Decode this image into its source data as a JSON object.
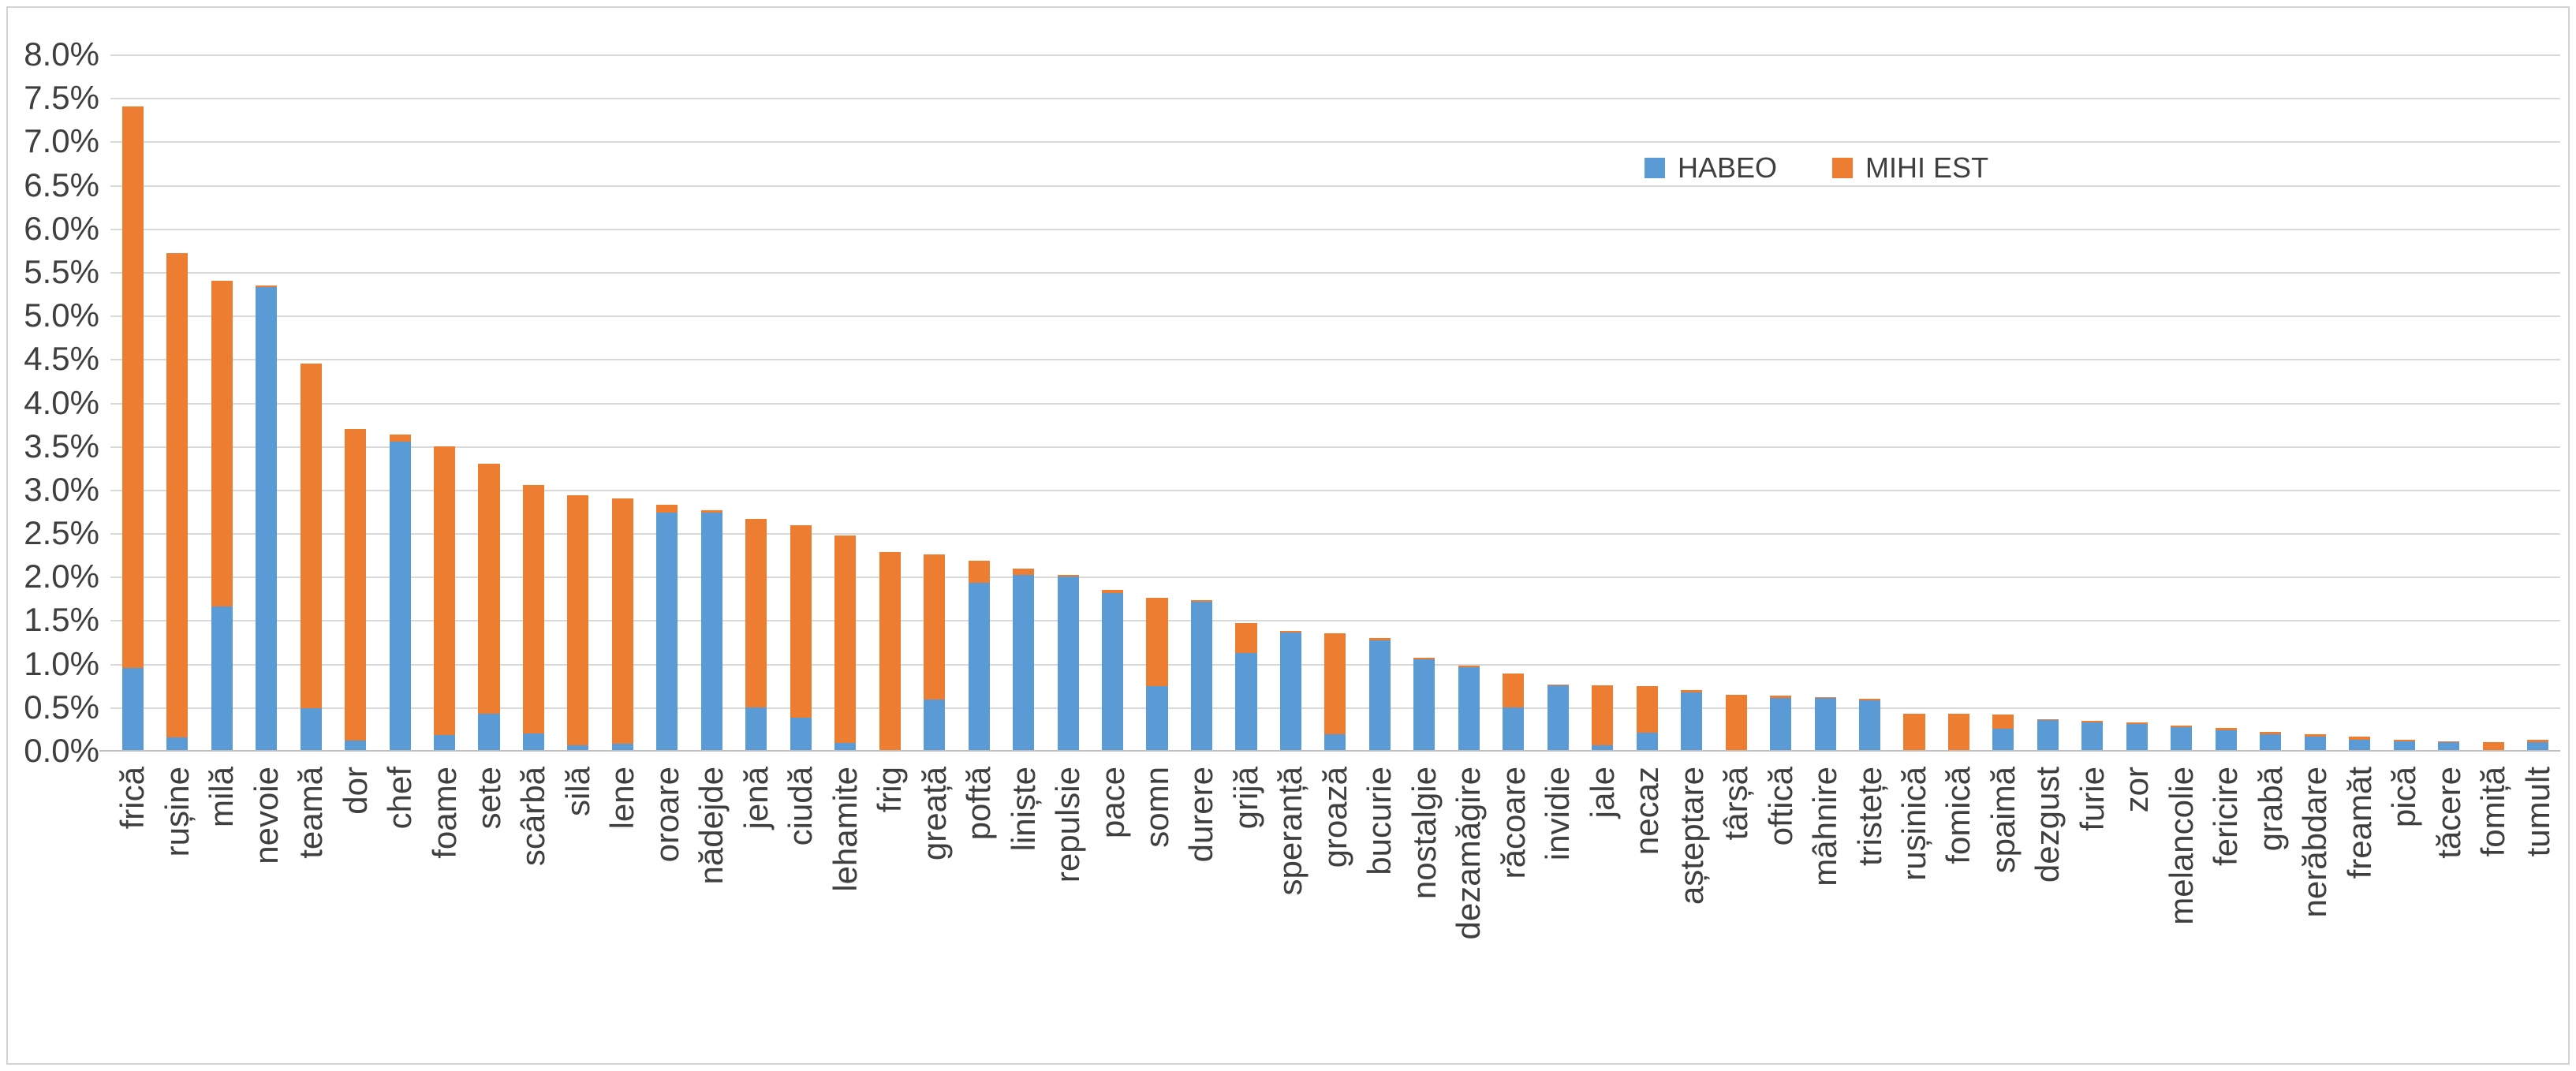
{
  "frame": {
    "background": "#FFFFFF",
    "border_color": "#D4D4D4",
    "gridline_color": "#D9D9D9",
    "axis_color": "#BFBFBF",
    "text_color": "#3F3F3F"
  },
  "chart_data": {
    "type": "bar",
    "stacked": true,
    "title": "",
    "xlabel": "",
    "ylabel": "",
    "ylim": [
      0,
      8
    ],
    "ytick_step_percent": 0.5,
    "grid": true,
    "legend_position": "upper-right-inside",
    "yticks": [
      "8.0%",
      "7.5%",
      "7.0%",
      "6.5%",
      "6.0%",
      "5.5%",
      "5.0%",
      "4.5%",
      "4.0%",
      "3.5%",
      "3.0%",
      "2.5%",
      "2.0%",
      "1.5%",
      "1.0%",
      "0.5%",
      "0.0%"
    ],
    "categories": [
      "frică",
      "rușine",
      "milă",
      "nevoie",
      "teamă",
      "dor",
      "chef",
      "foame",
      "sete",
      "scârbă",
      "silă",
      "lene",
      "oroare",
      "nădejde",
      "jenă",
      "ciudă",
      "lehamite",
      "frig",
      "greață",
      "poftă",
      "liniște",
      "repulsie",
      "pace",
      "somn",
      "durere",
      "grijă",
      "speranță",
      "groază",
      "bucurie",
      "nostalgie",
      "dezamăgire",
      "răcoare",
      "invidie",
      "jale",
      "necaz",
      "așteptare",
      "târșă",
      "oftică",
      "mâhnire",
      "tristețe",
      "rușinică",
      "fomică",
      "spaimă",
      "dezgust",
      "furie",
      "zor",
      "melancolie",
      "fericire",
      "grabă",
      "nerăbdare",
      "freamăt",
      "pică",
      "tăcere",
      "fomiță",
      "tumult"
    ],
    "series": [
      {
        "name": "HABEO",
        "color": "#5B9BD5",
        "values": [
          0.95,
          0.15,
          1.66,
          5.33,
          0.49,
          0.12,
          3.55,
          0.18,
          0.43,
          0.2,
          0.06,
          0.08,
          2.74,
          2.74,
          0.5,
          0.38,
          0.09,
          0.0,
          0.59,
          1.93,
          2.02,
          2.0,
          1.81,
          0.74,
          1.71,
          1.12,
          1.36,
          0.19,
          1.27,
          1.05,
          0.96,
          0.5,
          0.75,
          0.06,
          0.21,
          0.67,
          0.0,
          0.61,
          0.61,
          0.58,
          0.0,
          0.0,
          0.25,
          0.35,
          0.33,
          0.31,
          0.27,
          0.24,
          0.19,
          0.16,
          0.13,
          0.11,
          0.1,
          0.0,
          0.1
        ]
      },
      {
        "name": "MIHI EST",
        "color": "#ED7D31",
        "values": [
          6.45,
          5.57,
          3.74,
          0.02,
          3.96,
          3.58,
          0.08,
          3.32,
          2.87,
          2.85,
          2.88,
          2.82,
          0.09,
          0.02,
          2.16,
          2.21,
          2.38,
          2.28,
          1.67,
          0.25,
          0.07,
          0.02,
          0.04,
          1.02,
          0.02,
          0.35,
          0.02,
          1.16,
          0.03,
          0.02,
          0.02,
          0.39,
          0.01,
          0.69,
          0.53,
          0.03,
          0.64,
          0.02,
          0.01,
          0.02,
          0.43,
          0.43,
          0.17,
          0.01,
          0.01,
          0.02,
          0.02,
          0.02,
          0.03,
          0.03,
          0.03,
          0.02,
          0.01,
          0.1,
          0.03
        ]
      }
    ]
  }
}
